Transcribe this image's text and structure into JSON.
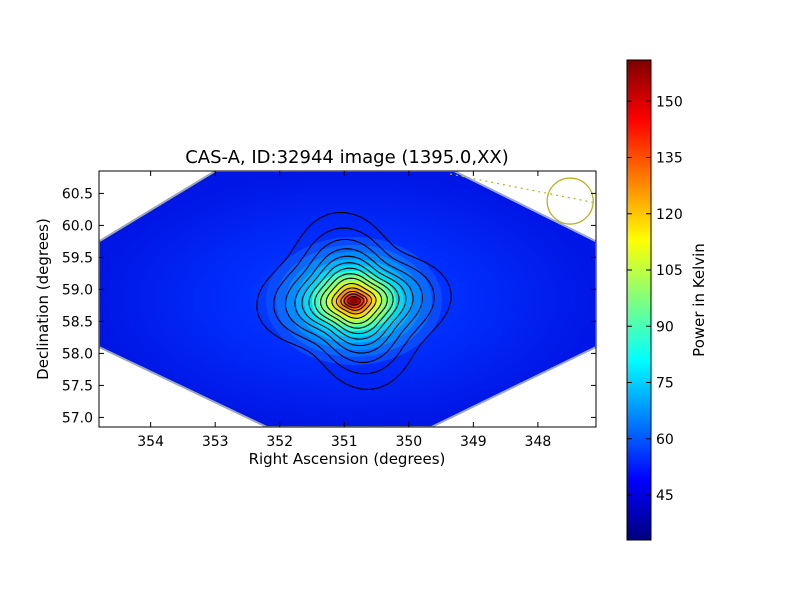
{
  "chart_data": {
    "type": "heatmap",
    "title": "CAS-A, ID:32944 image (1395.0,XX)",
    "xlabel": "Right Ascension (degrees)",
    "ylabel": "Declination (degrees)",
    "xlim": [
      354.8,
      347.1
    ],
    "ylim": [
      56.85,
      60.85
    ],
    "x_ticks": [
      "354",
      "353",
      "352",
      "351",
      "350",
      "349",
      "348"
    ],
    "y_ticks": [
      "57.0",
      "57.5",
      "58.0",
      "58.5",
      "59.0",
      "59.5",
      "60.0",
      "60.5"
    ],
    "source": {
      "ra": 350.85,
      "dec": 58.82,
      "peak": 158
    },
    "field_boundary": [
      [
        353.0,
        60.85
      ],
      [
        354.8,
        59.75
      ],
      [
        354.8,
        58.1
      ],
      [
        352.2,
        56.85
      ],
      [
        349.65,
        56.85
      ],
      [
        347.1,
        58.1
      ],
      [
        347.1,
        59.75
      ],
      [
        349.3,
        60.85
      ]
    ],
    "beam_marker": {
      "ra": 347.5,
      "dec": 60.38
    },
    "colorbar": {
      "label": "Power in Kelvin",
      "range": [
        33,
        161
      ],
      "ticks": [
        "45",
        "60",
        "75",
        "90",
        "105",
        "120",
        "135",
        "150"
      ],
      "colormap": [
        "#00007f",
        "#0000ff",
        "#007fff",
        "#00ffff",
        "#7fff7f",
        "#ffff00",
        "#ff7f00",
        "#ff0000",
        "#7f0000"
      ]
    },
    "grid": false,
    "legend": "none"
  }
}
